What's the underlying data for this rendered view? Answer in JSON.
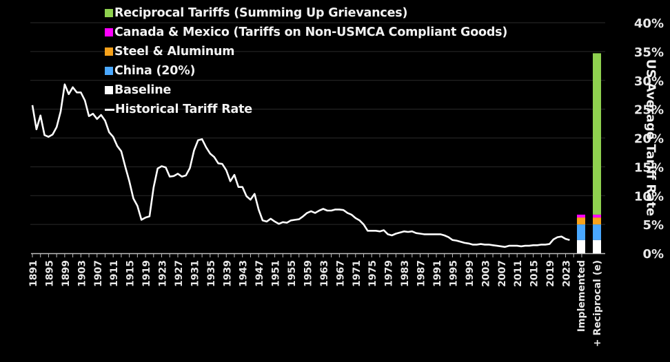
{
  "chart_data": {
    "type": "line+stacked-bar",
    "title": "",
    "ylabel": "US Average Tariff Rate",
    "xlabel": "",
    "ylim": [
      0,
      40
    ],
    "yticks": [
      "0%",
      "5%",
      "10%",
      "15%",
      "20%",
      "25%",
      "30%",
      "35%",
      "40%"
    ],
    "ytick_values": [
      0,
      5,
      10,
      15,
      20,
      25,
      30,
      35,
      40
    ],
    "grid": true,
    "legend_position": "top-left",
    "xtick_labels": [
      "1891",
      "1895",
      "1899",
      "1903",
      "1907",
      "1911",
      "1915",
      "1919",
      "1923",
      "1927",
      "1931",
      "1935",
      "1939",
      "1943",
      "1947",
      "1951",
      "1955",
      "1959",
      "1963",
      "1967",
      "1971",
      "1975",
      "1979",
      "1983",
      "1987",
      "1991",
      "1995",
      "1999",
      "2003",
      "2007",
      "2011",
      "2015",
      "2019",
      "2023"
    ],
    "legend": [
      {
        "label": "Reciprocal Tariffs (Summing Up Grievances)",
        "color": "#8fd14f",
        "kind": "box"
      },
      {
        "label": "Canada & Mexico (Tariffs on Non-USMCA Compliant Goods)",
        "color": "#ff00ff",
        "kind": "box"
      },
      {
        "label": "Steel & Aluminum",
        "color": "#f7a21b",
        "kind": "box"
      },
      {
        "label": "China (20%)",
        "color": "#4aa8ff",
        "kind": "box"
      },
      {
        "label": "Baseline",
        "color": "#ffffff",
        "kind": "box"
      },
      {
        "label": "Historical Tariff Rate",
        "color": "#ffffff",
        "kind": "line"
      }
    ],
    "line_series": {
      "name": "Historical Tariff Rate",
      "color": "#ffffff",
      "x": [
        1891,
        1892,
        1893,
        1894,
        1895,
        1896,
        1897,
        1898,
        1899,
        1900,
        1901,
        1902,
        1903,
        1904,
        1905,
        1906,
        1907,
        1908,
        1909,
        1910,
        1911,
        1912,
        1913,
        1914,
        1915,
        1916,
        1917,
        1918,
        1919,
        1920,
        1921,
        1922,
        1923,
        1924,
        1925,
        1926,
        1927,
        1928,
        1929,
        1930,
        1931,
        1932,
        1933,
        1934,
        1935,
        1936,
        1937,
        1938,
        1939,
        1940,
        1941,
        1942,
        1943,
        1944,
        1945,
        1946,
        1947,
        1948,
        1949,
        1950,
        1951,
        1952,
        1953,
        1954,
        1955,
        1956,
        1957,
        1958,
        1959,
        1960,
        1961,
        1962,
        1963,
        1964,
        1965,
        1966,
        1967,
        1968,
        1969,
        1970,
        1971,
        1972,
        1973,
        1974,
        1975,
        1976,
        1977,
        1978,
        1979,
        1980,
        1981,
        1982,
        1983,
        1984,
        1985,
        1986,
        1987,
        1988,
        1989,
        1990,
        1991,
        1992,
        1993,
        1994,
        1995,
        1996,
        1997,
        1998,
        1999,
        2000,
        2001,
        2002,
        2003,
        2004,
        2005,
        2006,
        2007,
        2008,
        2009,
        2010,
        2011,
        2012,
        2013,
        2014,
        2015,
        2016,
        2017,
        2018,
        2019,
        2020,
        2021,
        2022,
        2023,
        2024
      ],
      "y": [
        25.7,
        21.5,
        23.9,
        20.5,
        20.2,
        20.6,
        21.9,
        24.6,
        29.3,
        27.6,
        28.8,
        27.9,
        27.9,
        26.5,
        23.8,
        24.2,
        23.3,
        24.0,
        23.0,
        21.0,
        20.2,
        18.6,
        17.7,
        15.0,
        12.5,
        9.5,
        8.2,
        5.8,
        6.2,
        6.4,
        11.4,
        14.7,
        15.1,
        14.9,
        13.3,
        13.4,
        13.8,
        13.3,
        13.5,
        14.8,
        17.8,
        19.6,
        19.8,
        18.4,
        17.3,
        16.7,
        15.6,
        15.5,
        14.4,
        12.5,
        13.6,
        11.5,
        11.5,
        9.9,
        9.3,
        10.3,
        7.6,
        5.7,
        5.5,
        6.0,
        5.5,
        5.1,
        5.4,
        5.3,
        5.7,
        5.8,
        5.9,
        6.4,
        7.0,
        7.3,
        7.0,
        7.4,
        7.7,
        7.4,
        7.4,
        7.6,
        7.6,
        7.5,
        7.0,
        6.7,
        6.1,
        5.7,
        5.0,
        3.9,
        3.9,
        3.9,
        3.8,
        4.0,
        3.3,
        3.1,
        3.4,
        3.6,
        3.8,
        3.7,
        3.8,
        3.5,
        3.4,
        3.3,
        3.3,
        3.3,
        3.3,
        3.3,
        3.1,
        2.8,
        2.3,
        2.2,
        2.0,
        1.8,
        1.7,
        1.5,
        1.5,
        1.6,
        1.5,
        1.5,
        1.4,
        1.3,
        1.2,
        1.1,
        1.3,
        1.3,
        1.3,
        1.2,
        1.3,
        1.3,
        1.4,
        1.4,
        1.5,
        1.5,
        1.6,
        2.4,
        2.8,
        2.9,
        2.5,
        2.3
      ]
    },
    "bar_categories": [
      "Implemented",
      "+ Reciprocal (e)"
    ],
    "bar_series": [
      {
        "name": "Baseline",
        "color": "#ffffff",
        "values": [
          2.3,
          2.3
        ]
      },
      {
        "name": "China (20%)",
        "color": "#4aa8ff",
        "values": [
          2.7,
          2.7
        ]
      },
      {
        "name": "Steel & Aluminum",
        "color": "#f7a21b",
        "values": [
          1.2,
          1.2
        ]
      },
      {
        "name": "Canada & Mexico (Tariffs on Non-USMCA Compliant Goods)",
        "color": "#ff00ff",
        "values": [
          0.5,
          0.5
        ]
      },
      {
        "name": "Reciprocal Tariffs (Summing Up Grievances)",
        "color": "#8fd14f",
        "values": [
          0,
          28.0
        ]
      }
    ]
  }
}
